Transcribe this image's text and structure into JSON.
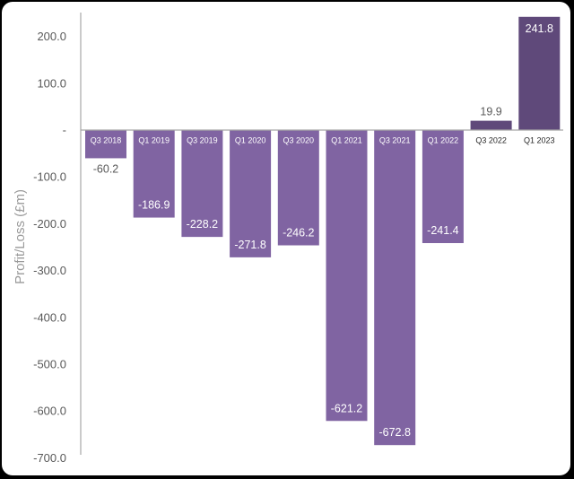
{
  "chart_data": {
    "type": "bar",
    "ylabel": "Profit/Loss (£m)",
    "xlabel": "",
    "title": "",
    "ylim": [
      -700,
      250
    ],
    "y_ticks": [
      200,
      100,
      0,
      -100,
      -200,
      -300,
      -400,
      -500,
      -600,
      -700
    ],
    "y_tick_labels": [
      "200.0",
      "100.0",
      "-",
      "-100.0",
      "-200.0",
      "-300.0",
      "-400.0",
      "-500.0",
      "-600.0",
      "-700.0"
    ],
    "categories": [
      "Q3 2018",
      "Q1 2019",
      "Q3 2019",
      "Q1 2020",
      "Q3 2020",
      "Q1 2021",
      "Q3 2021",
      "Q1 2022",
      "Q3 2022",
      "Q1 2023"
    ],
    "values": [
      -60.2,
      -186.9,
      -228.2,
      -271.8,
      -246.2,
      -621.2,
      -672.8,
      -241.4,
      19.9,
      241.8
    ],
    "value_labels": [
      "-60.2",
      "-186.9",
      "-228.2",
      "-271.8",
      "-246.2",
      "-621.2",
      "-672.8",
      "-241.4",
      "19.9",
      "241.8"
    ],
    "grid": false,
    "colors": {
      "negative_bar": "#8064a2",
      "positive_bar": "#5f497a",
      "axis": "#a6a6a6",
      "label_dark": "#595959",
      "label_light": "#ffffff",
      "category_on_bar": "#ffffff",
      "category_off_bar": "#262626"
    }
  }
}
